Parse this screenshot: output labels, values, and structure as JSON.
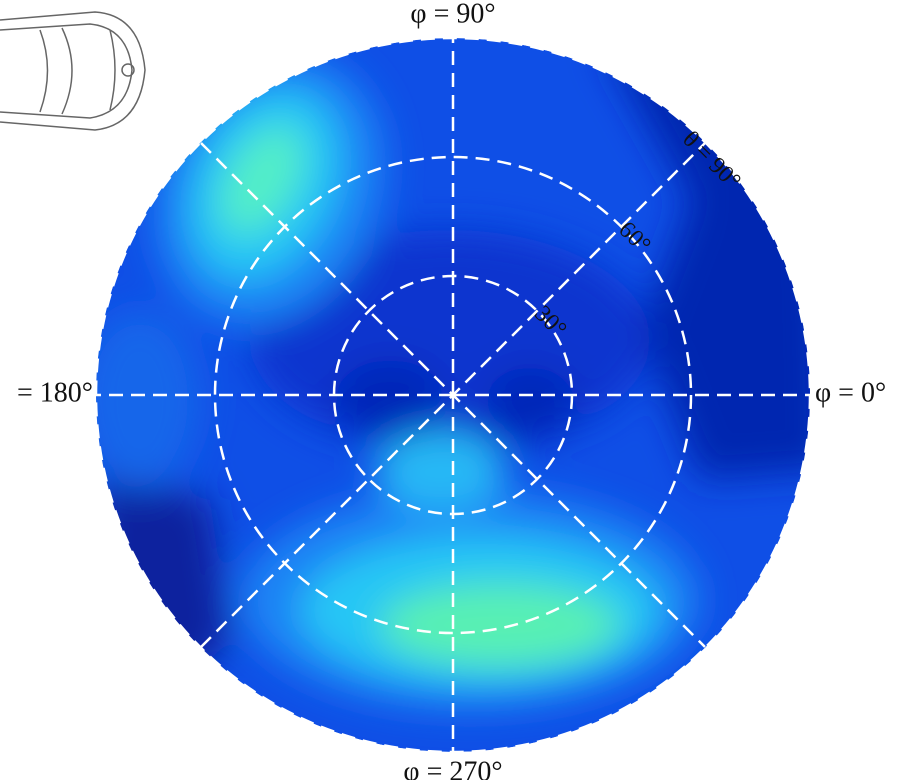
{
  "chart_data": {
    "type": "polar-contour",
    "phiticks": [
      {
        "value": 0,
        "label": "φ = 0°"
      },
      {
        "value": 90,
        "label": "φ = 90°"
      },
      {
        "value": 180,
        "label": "= 180°"
      },
      {
        "value": 270,
        "label": "φ = 270°"
      }
    ],
    "rlim": [
      0,
      90
    ],
    "rticks": [
      {
        "value": 30,
        "label": "30°"
      },
      {
        "value": 60,
        "label": "60°"
      },
      {
        "value": 90,
        "label": "θ = 90°"
      }
    ],
    "grid": true
  }
}
